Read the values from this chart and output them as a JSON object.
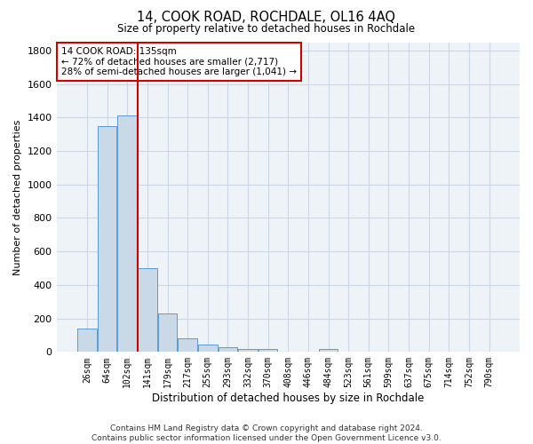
{
  "title": "14, COOK ROAD, ROCHDALE, OL16 4AQ",
  "subtitle": "Size of property relative to detached houses in Rochdale",
  "xlabel": "Distribution of detached houses by size in Rochdale",
  "ylabel": "Number of detached properties",
  "bar_labels": [
    "26sqm",
    "64sqm",
    "102sqm",
    "141sqm",
    "179sqm",
    "217sqm",
    "255sqm",
    "293sqm",
    "332sqm",
    "370sqm",
    "408sqm",
    "446sqm",
    "484sqm",
    "523sqm",
    "561sqm",
    "599sqm",
    "637sqm",
    "675sqm",
    "714sqm",
    "752sqm",
    "790sqm"
  ],
  "bar_values": [
    140,
    1350,
    1410,
    500,
    230,
    80,
    45,
    30,
    20,
    20,
    0,
    0,
    20,
    0,
    0,
    0,
    0,
    0,
    0,
    0,
    0
  ],
  "bar_color": "#c9d9e8",
  "bar_edge_color": "#5b9bd5",
  "annotation_text": "14 COOK ROAD: 135sqm\n← 72% of detached houses are smaller (2,717)\n28% of semi-detached houses are larger (1,041) →",
  "annotation_box_color": "#ffffff",
  "annotation_edge_color": "#cc0000",
  "red_line_color": "#cc0000",
  "ylim": [
    0,
    1850
  ],
  "yticks": [
    0,
    200,
    400,
    600,
    800,
    1000,
    1200,
    1400,
    1600,
    1800
  ],
  "grid_color": "#c8d8e8",
  "background_color": "#eef3f8",
  "footer_line1": "Contains HM Land Registry data © Crown copyright and database right 2024.",
  "footer_line2": "Contains public sector information licensed under the Open Government Licence v3.0."
}
